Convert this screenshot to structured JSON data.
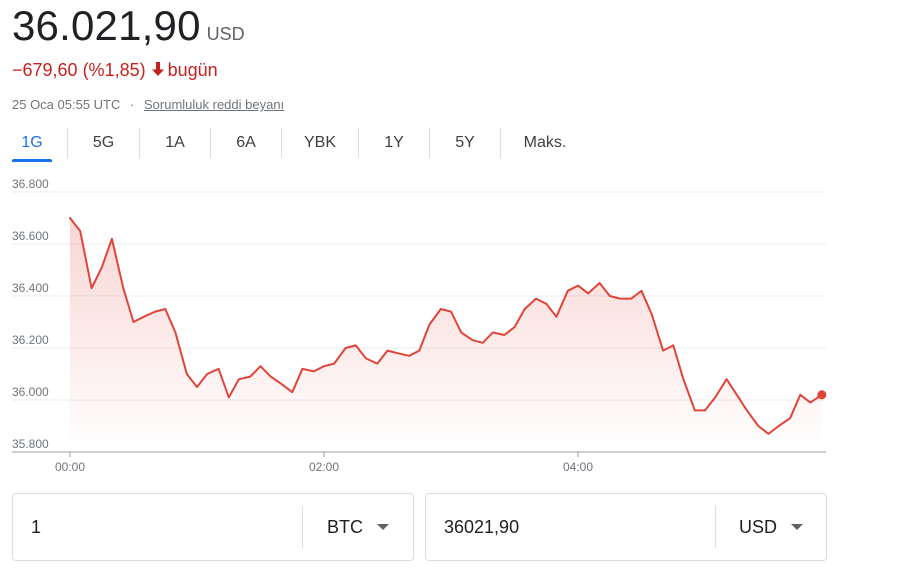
{
  "quote": {
    "price": "36.021,90",
    "currency": "USD",
    "change": "−679,60 (%1,85)",
    "change_period": "bugün",
    "timestamp": "25 Oca 05:55 UTC",
    "separator": "·",
    "disclaimer": "Sorumluluk reddi beyanı"
  },
  "tabs": [
    {
      "label": "1G",
      "active": true
    },
    {
      "label": "5G",
      "active": false
    },
    {
      "label": "1A",
      "active": false
    },
    {
      "label": "6A",
      "active": false
    },
    {
      "label": "YBK",
      "active": false
    },
    {
      "label": "1Y",
      "active": false
    },
    {
      "label": "5Y",
      "active": false
    },
    {
      "label": "Maks.",
      "active": false
    }
  ],
  "colors": {
    "line": "#e0453a",
    "accent": "#1a73e8",
    "negative": "#c5221f"
  },
  "chart_data": {
    "type": "line",
    "x_unit": "hours since 00:00",
    "ylim": [
      35800,
      36800
    ],
    "xlim": [
      0,
      6.0
    ],
    "y_ticks": [
      "36.800",
      "36.600",
      "36.400",
      "36.200",
      "36.000",
      "35.800"
    ],
    "y_tick_values": [
      36800,
      36600,
      36400,
      36200,
      36000,
      35800
    ],
    "x_ticks": [
      "00:00",
      "02:00",
      "04:00"
    ],
    "x_tick_values": [
      0,
      2,
      4
    ],
    "grid": true,
    "series": [
      {
        "x": [
          0,
          0.08,
          0.17,
          0.25,
          0.33,
          0.42,
          0.5,
          0.58,
          0.67,
          0.75,
          0.83,
          0.92,
          1.0,
          1.08,
          1.17,
          1.25,
          1.33,
          1.42,
          1.5,
          1.58,
          1.67,
          1.75,
          1.83,
          1.92,
          2.0,
          2.08,
          2.17,
          2.25,
          2.33,
          2.42,
          2.5,
          2.58,
          2.67,
          2.75,
          2.83,
          2.92,
          3.0,
          3.08,
          3.17,
          3.25,
          3.33,
          3.42,
          3.5,
          3.58,
          3.67,
          3.75,
          3.83,
          3.92,
          4.0,
          4.08,
          4.17,
          4.25,
          4.33,
          4.42,
          4.5,
          4.58,
          4.67,
          4.75,
          4.83,
          4.92,
          5.0,
          5.08,
          5.17,
          5.25,
          5.33,
          5.42,
          5.5,
          5.58,
          5.67,
          5.75,
          5.83,
          5.92
        ],
        "y": [
          36700,
          36650,
          36430,
          36510,
          36620,
          36430,
          36300,
          36320,
          36340,
          36350,
          36260,
          36100,
          36050,
          36100,
          36120,
          36010,
          36080,
          36090,
          36130,
          36090,
          36060,
          36030,
          36120,
          36110,
          36130,
          36140,
          36200,
          36210,
          36160,
          36140,
          36190,
          36180,
          36170,
          36190,
          36290,
          36350,
          36340,
          36260,
          36230,
          36220,
          36260,
          36250,
          36280,
          36350,
          36390,
          36370,
          36320,
          36420,
          36440,
          36410,
          36450,
          36400,
          36390,
          36390,
          36420,
          36330,
          36190,
          36210,
          36080,
          35960,
          35960,
          36010,
          36080,
          36020,
          35960,
          35900,
          35870,
          35900,
          35930,
          36020,
          35990,
          36020
        ]
      }
    ],
    "last_point_marker": true
  },
  "converter": {
    "from_value": "1",
    "from_unit": "BTC",
    "to_value": "36021,90",
    "to_unit": "USD"
  }
}
